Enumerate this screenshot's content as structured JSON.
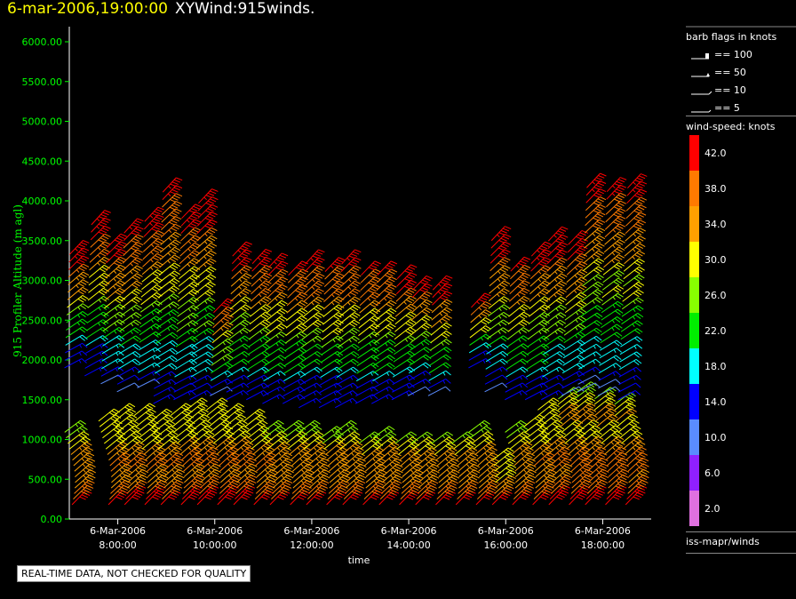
{
  "header": {
    "date_time": "6-mar-2006,19:00:00",
    "product": "XYWind:915winds."
  },
  "notice": "REAL-TIME DATA, NOT CHECKED FOR QUALITY",
  "legend": {
    "barb_title": "barb flags in knots",
    "barb_items": [
      "== 100",
      "== 50",
      "== 10",
      "== 5"
    ],
    "speed_title": "wind-speed: knots",
    "speed_scale": [
      {
        "label": "42.0",
        "color": "#ff0000"
      },
      {
        "label": "38.0",
        "color": "#ff7a00"
      },
      {
        "label": "34.0",
        "color": "#ffa000"
      },
      {
        "label": "30.0",
        "color": "#ffff00"
      },
      {
        "label": "26.0",
        "color": "#88ff00"
      },
      {
        "label": "22.0",
        "color": "#00ee00"
      },
      {
        "label": "18.0",
        "color": "#00ffff"
      },
      {
        "label": "14.0",
        "color": "#0000ff"
      },
      {
        "label": "10.0",
        "color": "#5a8cff"
      },
      {
        "label": "6.0",
        "color": "#9020ff"
      },
      {
        "label": "2.0",
        "color": "#e070e0"
      }
    ],
    "source": "iss-mapr/winds"
  },
  "chart_data": {
    "type": "scatter",
    "ylabel": "915 Profiler Altitude (m agl)",
    "xlabel": "time",
    "ylim": [
      0,
      6200
    ],
    "y_ticks": [
      "0.00",
      "500.00",
      "1000.00",
      "1500.00",
      "2000.00",
      "2500.00",
      "3000.00",
      "3500.00",
      "4000.00",
      "4500.00",
      "5000.00",
      "5500.00",
      "6000.00"
    ],
    "x_range": [
      "2006-03-06 07:00",
      "2006-03-06 19:00"
    ],
    "x_ticks": [
      {
        "date": "6-Mar-2006",
        "time": "8:00:00"
      },
      {
        "date": "6-Mar-2006",
        "time": "10:00:00"
      },
      {
        "date": "6-Mar-2006",
        "time": "12:00:00"
      },
      {
        "date": "6-Mar-2006",
        "time": "14:00:00"
      },
      {
        "date": "6-Mar-2006",
        "time": "16:00:00"
      },
      {
        "date": "6-Mar-2006",
        "time": "18:00:00"
      }
    ],
    "profiles": [
      {
        "time": "07:05",
        "low_top": 1100,
        "high_base": 1900,
        "high_top": 3350
      },
      {
        "time": "07:30",
        "low_top": 0,
        "high_base": 1800,
        "high_top": 3700
      },
      {
        "time": "07:50",
        "low_top": 1250,
        "high_base": 1700,
        "high_top": 3500
      },
      {
        "time": "08:10",
        "low_top": 1300,
        "high_base": 1600,
        "high_top": 3600
      },
      {
        "time": "08:35",
        "low_top": 1300,
        "high_base": 1650,
        "high_top": 3750
      },
      {
        "time": "08:55",
        "low_top": 1250,
        "high_base": 1450,
        "high_top": 4200
      },
      {
        "time": "09:20",
        "low_top": 1350,
        "high_base": 1500,
        "high_top": 3850
      },
      {
        "time": "09:40",
        "low_top": 1400,
        "high_base": 1500,
        "high_top": 4000
      },
      {
        "time": "10:05",
        "low_top": 1400,
        "high_base": 1550,
        "high_top": 2650
      },
      {
        "time": "10:25",
        "low_top": 1350,
        "high_base": 1500,
        "high_top": 3350
      },
      {
        "time": "10:50",
        "low_top": 1250,
        "high_base": 1500,
        "high_top": 3250
      },
      {
        "time": "11:10",
        "low_top": 1150,
        "high_base": 1450,
        "high_top": 3200
      },
      {
        "time": "11:35",
        "low_top": 1150,
        "high_base": 1450,
        "high_top": 3150
      },
      {
        "time": "11:55",
        "low_top": 1150,
        "high_base": 1400,
        "high_top": 3250
      },
      {
        "time": "12:20",
        "low_top": 1050,
        "high_base": 1400,
        "high_top": 3200
      },
      {
        "time": "12:40",
        "low_top": 1100,
        "high_base": 1400,
        "high_top": 3250
      },
      {
        "time": "13:05",
        "low_top": 1000,
        "high_base": 1450,
        "high_top": 3150
      },
      {
        "time": "13:25",
        "low_top": 1050,
        "high_base": 1450,
        "high_top": 3150
      },
      {
        "time": "13:50",
        "low_top": 1000,
        "high_base": 1500,
        "high_top": 3050
      },
      {
        "time": "14:10",
        "low_top": 950,
        "high_base": 1550,
        "high_top": 2950
      },
      {
        "time": "14:35",
        "low_top": 950,
        "high_base": 1550,
        "high_top": 2900
      },
      {
        "time": "15:00",
        "low_top": 1000,
        "high_base": 0,
        "high_top": 0
      },
      {
        "time": "15:25",
        "low_top": 1100,
        "high_base": 1900,
        "high_top": 2700
      },
      {
        "time": "15:45",
        "low_top": 750,
        "high_base": 1600,
        "high_top": 3500
      },
      {
        "time": "16:10",
        "low_top": 1100,
        "high_base": 1500,
        "high_top": 3200
      },
      {
        "time": "16:35",
        "low_top": 1200,
        "high_base": 1500,
        "high_top": 3350
      },
      {
        "time": "16:55",
        "low_top": 1400,
        "high_base": 1500,
        "high_top": 3500
      },
      {
        "time": "17:20",
        "low_top": 1550,
        "high_base": 1550,
        "high_top": 3500
      },
      {
        "time": "17:40",
        "low_top": 1600,
        "high_base": 1600,
        "high_top": 4200
      },
      {
        "time": "18:05",
        "low_top": 1550,
        "high_base": 1550,
        "high_top": 4200
      },
      {
        "time": "18:30",
        "low_top": 1500,
        "high_base": 1500,
        "high_top": 4200
      }
    ]
  }
}
